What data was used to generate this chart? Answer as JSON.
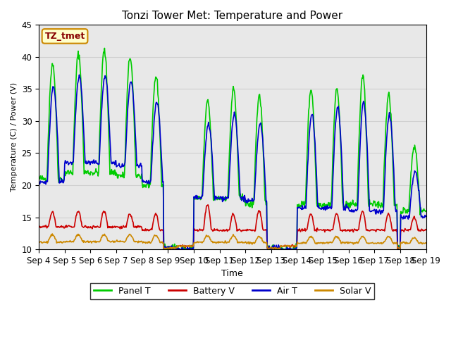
{
  "title": "Tonzi Tower Met: Temperature and Power",
  "xlabel": "Time",
  "ylabel": "Temperature (C) / Power (V)",
  "ylim": [
    10,
    45
  ],
  "x_tick_labels": [
    "Sep 4",
    "Sep 5",
    "Sep 6",
    "Sep 7",
    "Sep 8",
    "Sep 9",
    "Sep 10",
    "Sep 11",
    "Sep 12",
    "Sep 13",
    "Sep 14",
    "Sep 15",
    "Sep 16",
    "Sep 17",
    "Sep 18",
    "Sep 19"
  ],
  "grid_color": "#d0d0d0",
  "bg_color": "#e8e8e8",
  "panel_t_color": "#00cc00",
  "battery_v_color": "#cc0000",
  "air_t_color": "#0000cc",
  "solar_v_color": "#cc8800",
  "legend_labels": [
    "Panel T",
    "Battery V",
    "Air T",
    "Solar V"
  ],
  "annotation_text": "TZ_tmet",
  "annotation_bg": "#ffffcc",
  "annotation_border": "#cc8800",
  "annotation_fg": "#880000"
}
